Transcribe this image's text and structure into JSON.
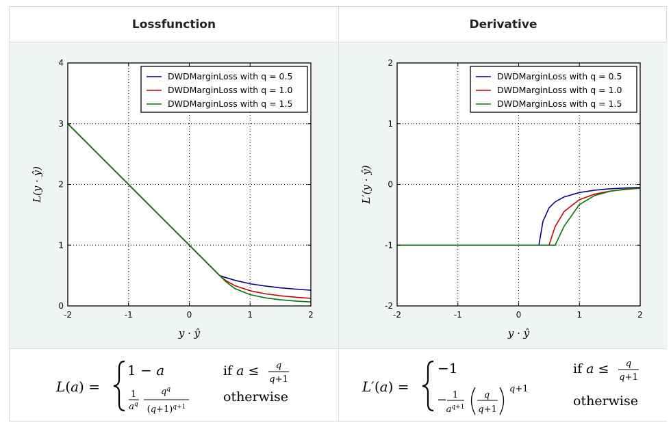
{
  "headers": {
    "left": "Lossfunction",
    "right": "Derivative"
  },
  "chart_data": [
    {
      "type": "line",
      "title": "Lossfunction",
      "xlabel": "y · ŷ",
      "ylabel": "L(y · ŷ)",
      "xlim": [
        -2,
        2
      ],
      "ylim": [
        0,
        4
      ],
      "xticks": [
        "-2",
        "-1",
        "0",
        "1",
        "2"
      ],
      "yticks": [
        "0",
        "1",
        "2",
        "3",
        "4"
      ],
      "grid": true,
      "legend_position": "top-right",
      "x": [
        -2.0,
        -1.5,
        -1.0,
        -0.5,
        0.0,
        0.25,
        0.333,
        0.4,
        0.5,
        0.6,
        0.75,
        1.0,
        1.25,
        1.5,
        1.75,
        2.0
      ],
      "series": [
        {
          "name": "DWDMarginLoss with q = 0.5",
          "color": "#00008b",
          "values": [
            3.0,
            2.5,
            2.0,
            1.5,
            1.0,
            0.75,
            0.667,
            0.6,
            0.5,
            0.467,
            0.422,
            0.365,
            0.327,
            0.298,
            0.276,
            0.258
          ]
        },
        {
          "name": "DWDMarginLoss with q = 1.0",
          "color": "#cc0000",
          "values": [
            3.0,
            2.5,
            2.0,
            1.5,
            1.0,
            0.75,
            0.667,
            0.6,
            0.5,
            0.417,
            0.333,
            0.25,
            0.2,
            0.167,
            0.143,
            0.125
          ]
        },
        {
          "name": "DWDMarginLoss with q = 1.5",
          "color": "#007700",
          "values": [
            3.0,
            2.5,
            2.0,
            1.5,
            1.0,
            0.75,
            0.667,
            0.6,
            0.5,
            0.4,
            0.286,
            0.186,
            0.133,
            0.101,
            0.08,
            0.066
          ]
        }
      ]
    },
    {
      "type": "line",
      "title": "Derivative",
      "xlabel": "y · ŷ",
      "ylabel": "L′(y · ŷ)",
      "xlim": [
        -2,
        2
      ],
      "ylim": [
        -2,
        2
      ],
      "xticks": [
        "-2",
        "-1",
        "0",
        "1",
        "2"
      ],
      "yticks": [
        "-2",
        "-1",
        "0",
        "1",
        "2"
      ],
      "grid": true,
      "legend_position": "top-right",
      "x": [
        -2.0,
        -1.0,
        0.0,
        0.333,
        0.4,
        0.5,
        0.6,
        0.75,
        1.0,
        1.25,
        1.5,
        1.75,
        2.0
      ],
      "series": [
        {
          "name": "DWDMarginLoss with q = 0.5",
          "color": "#00008b",
          "values": [
            -1,
            -1,
            -1,
            -1,
            -0.608,
            -0.385,
            -0.287,
            -0.205,
            -0.133,
            -0.095,
            -0.072,
            -0.058,
            -0.048
          ]
        },
        {
          "name": "DWDMarginLoss with q = 1.0",
          "color": "#cc0000",
          "values": [
            -1,
            -1,
            -1,
            -1,
            -1,
            -1,
            -0.694,
            -0.444,
            -0.25,
            -0.16,
            -0.111,
            -0.082,
            -0.063
          ]
        },
        {
          "name": "DWDMarginLoss with q = 1.5",
          "color": "#007700",
          "values": [
            -1,
            -1,
            -1,
            -1,
            -1,
            -1,
            -1,
            -0.685,
            -0.331,
            -0.183,
            -0.114,
            -0.077,
            -0.055
          ]
        }
      ]
    }
  ],
  "formulas": {
    "left": {
      "lhs": "L(a) =",
      "case1_expr": "1 − a",
      "case1_cond": "if a ≤ q/(q+1)",
      "case2_expr": "(1/a^q) · q^q/(q+1)^(q+1)",
      "case2_cond": "otherwise"
    },
    "right": {
      "lhs": "L′(a) =",
      "case1_expr": "−1",
      "case1_cond": "if a ≤ q/(q+1)",
      "case2_expr": "−(1/a^(q+1)) · (q/(q+1))^(q+1)",
      "case2_cond": "otherwise"
    }
  }
}
